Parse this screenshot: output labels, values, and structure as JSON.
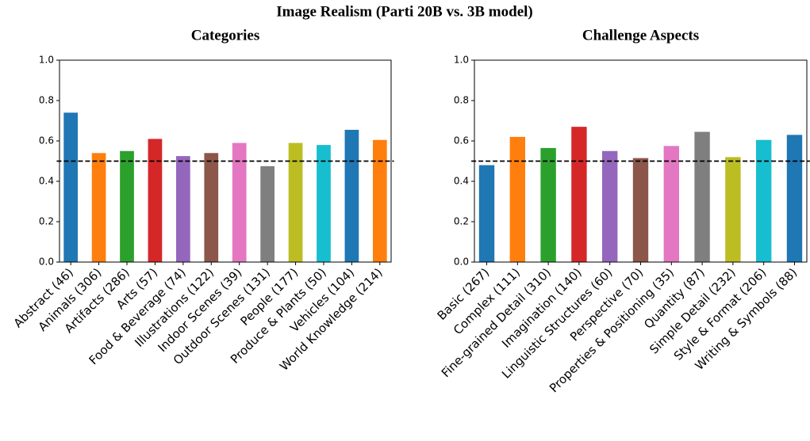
{
  "title": "Image Realism (Parti 20B vs. 3B model)",
  "chart_data": [
    {
      "type": "bar",
      "title": "Categories",
      "categories": [
        "Abstract (46)",
        "Animals (306)",
        "Artifacts (286)",
        "Arts (57)",
        "Food & Beverage (74)",
        "Illustrations (122)",
        "Indoor Scenes (39)",
        "Outdoor Scenes (131)",
        "People (177)",
        "Produce & Plants (50)",
        "Vehicles (104)",
        "World Knowledge (214)"
      ],
      "values": [
        0.74,
        0.54,
        0.55,
        0.61,
        0.525,
        0.54,
        0.59,
        0.475,
        0.59,
        0.58,
        0.655,
        0.605
      ],
      "colors": [
        "#1f77b4",
        "#ff7f0e",
        "#2ca02c",
        "#d62728",
        "#9467bd",
        "#8c564b",
        "#e377c2",
        "#7f7f7f",
        "#bcbd22",
        "#17becf",
        "#1f77b4",
        "#ff7f0e"
      ],
      "reference_line": 0.5,
      "ylim": [
        0,
        1
      ],
      "yticks": [
        {
          "value": 0,
          "label": "0.0"
        },
        {
          "value": 0.2,
          "label": "0.2"
        },
        {
          "value": 0.4,
          "label": "0.4"
        },
        {
          "value": 0.6,
          "label": "0.6"
        },
        {
          "value": 0.8,
          "label": "0.8"
        },
        {
          "value": 1,
          "label": "1.0"
        }
      ]
    },
    {
      "type": "bar",
      "title": "Challenge Aspects",
      "categories": [
        "Basic (267)",
        "Complex (111)",
        "Fine-grained Detail (310)",
        "Imagination (140)",
        "Linguistic Structures (60)",
        "Perspective (70)",
        "Properties & Positioning (35)",
        "Quantity (87)",
        "Simple Detail (232)",
        "Style & Format (206)",
        "Writing & Symbols (88)"
      ],
      "values": [
        0.48,
        0.62,
        0.565,
        0.67,
        0.55,
        0.515,
        0.575,
        0.645,
        0.52,
        0.605,
        0.63
      ],
      "colors": [
        "#1f77b4",
        "#ff7f0e",
        "#2ca02c",
        "#d62728",
        "#9467bd",
        "#8c564b",
        "#e377c2",
        "#7f7f7f",
        "#bcbd22",
        "#17becf",
        "#1f77b4"
      ],
      "reference_line": 0.5,
      "ylim": [
        0,
        1
      ],
      "yticks": [
        {
          "value": 0,
          "label": "0.0"
        },
        {
          "value": 0.2,
          "label": "0.2"
        },
        {
          "value": 0.4,
          "label": "0.4"
        },
        {
          "value": 0.6,
          "label": "0.6"
        },
        {
          "value": 0.8,
          "label": "0.8"
        },
        {
          "value": 1,
          "label": "1.0"
        }
      ]
    }
  ]
}
